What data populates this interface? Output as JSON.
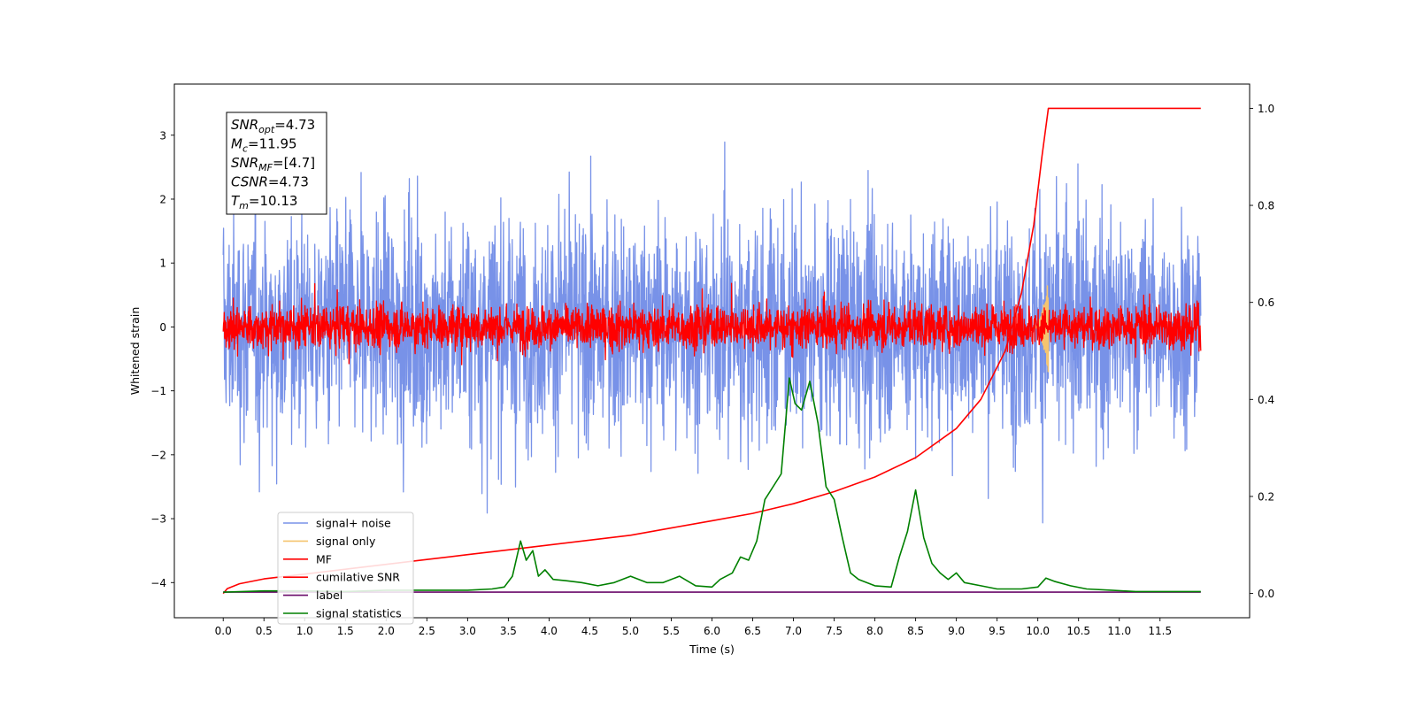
{
  "chart_data": {
    "type": "line",
    "xlabel": "Time (s)",
    "ylabel": "Whitened strain",
    "ylabel_right": "",
    "xlim": [
      -0.6,
      12.6
    ],
    "ylim": [
      -4.55,
      3.8
    ],
    "ylim_right": [
      -0.05,
      1.05
    ],
    "x_ticks": [
      0.0,
      0.5,
      1.0,
      1.5,
      2.0,
      2.5,
      3.0,
      3.5,
      4.0,
      4.5,
      5.0,
      5.5,
      6.0,
      6.5,
      7.0,
      7.5,
      8.0,
      8.5,
      9.0,
      9.5,
      10.0,
      10.5,
      11.0,
      11.5
    ],
    "x_tick_labels": [
      "0.0",
      "0.5",
      "1.0",
      "1.5",
      "2.0",
      "2.5",
      "3.0",
      "3.5",
      "4.0",
      "4.5",
      "5.0",
      "5.5",
      "6.0",
      "6.5",
      "7.0",
      "7.5",
      "8.0",
      "8.5",
      "9.0",
      "9.5",
      "10.0",
      "10.5",
      "11.0",
      "11.5"
    ],
    "y_ticks": [
      -4,
      -3,
      -2,
      -1,
      0,
      1,
      2,
      3
    ],
    "y_tick_labels": [
      "−4",
      "−3",
      "−2",
      "−1",
      "0",
      "1",
      "2",
      "3"
    ],
    "y_ticks_right": [
      0.0,
      0.2,
      0.4,
      0.6,
      0.8,
      1.0
    ],
    "y_tick_labels_right": [
      "0.0",
      "0.2",
      "0.4",
      "0.6",
      "0.8",
      "1.0"
    ],
    "grid": false,
    "legend_position": "lower-left",
    "annotation": [
      {
        "name": "SNR",
        "sub": "opt",
        "value": "=4.73"
      },
      {
        "name": "M",
        "sub": "c",
        "value": "=11.95"
      },
      {
        "name": "SNR",
        "sub": "MF",
        "value": "=[4.7]"
      },
      {
        "name": "CSNR",
        "sub": "",
        "value": "=4.73"
      },
      {
        "name": "T",
        "sub": "m",
        "value": "=10.13"
      }
    ],
    "series": [
      {
        "name": "signal+ noise",
        "color": "#7892e8",
        "axis": "left",
        "kind": "noise",
        "x_range": [
          0.0,
          12.0
        ],
        "std": 0.85
      },
      {
        "name": "signal only",
        "color": "#f5c46e",
        "axis": "left",
        "kind": "chirp",
        "x_range": [
          9.95,
          10.13
        ],
        "peak": 0.75
      },
      {
        "name": "MF",
        "color": "#ff0000",
        "axis": "left",
        "kind": "noise",
        "x_range": [
          0.0,
          12.0
        ],
        "std": 0.17
      },
      {
        "name": "cumilative SNR",
        "color": "#ff0000",
        "axis": "right",
        "x": [
          0.0,
          0.05,
          0.2,
          0.5,
          1.0,
          1.5,
          2.0,
          2.5,
          3.0,
          3.5,
          4.0,
          4.5,
          5.0,
          5.5,
          6.0,
          6.5,
          7.0,
          7.5,
          8.0,
          8.5,
          9.0,
          9.3,
          9.6,
          9.8,
          9.95,
          10.05,
          10.13,
          12.0
        ],
        "y": [
          0.0,
          0.01,
          0.02,
          0.03,
          0.04,
          0.05,
          0.06,
          0.07,
          0.08,
          0.09,
          0.1,
          0.11,
          0.12,
          0.135,
          0.15,
          0.165,
          0.185,
          0.21,
          0.24,
          0.28,
          0.34,
          0.4,
          0.5,
          0.62,
          0.76,
          0.9,
          1.0,
          1.0
        ]
      },
      {
        "name": "label",
        "color": "#6a0a6a",
        "axis": "left",
        "x": [
          0.0,
          12.0
        ],
        "y": [
          -4.15,
          -4.15
        ]
      },
      {
        "name": "signal statistics",
        "color": "#008000",
        "axis": "left",
        "x": [
          0.0,
          0.5,
          1.0,
          1.5,
          2.0,
          2.5,
          3.0,
          3.3,
          3.45,
          3.55,
          3.65,
          3.72,
          3.8,
          3.87,
          3.95,
          4.05,
          4.2,
          4.4,
          4.6,
          4.8,
          5.0,
          5.2,
          5.4,
          5.6,
          5.8,
          6.0,
          6.1,
          6.25,
          6.35,
          6.45,
          6.55,
          6.65,
          6.75,
          6.85,
          6.95,
          7.02,
          7.1,
          7.2,
          7.3,
          7.4,
          7.5,
          7.6,
          7.7,
          7.8,
          8.0,
          8.2,
          8.3,
          8.4,
          8.5,
          8.6,
          8.7,
          8.8,
          8.9,
          9.0,
          9.1,
          9.3,
          9.5,
          9.8,
          10.0,
          10.1,
          10.2,
          10.4,
          10.6,
          10.9,
          11.2,
          12.0
        ],
        "y": [
          -4.15,
          -4.13,
          -4.13,
          -4.14,
          -4.12,
          -4.12,
          -4.12,
          -4.1,
          -4.07,
          -3.9,
          -3.35,
          -3.65,
          -3.5,
          -3.9,
          -3.8,
          -3.95,
          -3.97,
          -4.0,
          -4.05,
          -4.0,
          -3.9,
          -4.0,
          -4.0,
          -3.9,
          -4.05,
          -4.07,
          -3.95,
          -3.85,
          -3.6,
          -3.65,
          -3.35,
          -2.7,
          -2.5,
          -2.3,
          -0.8,
          -1.2,
          -1.3,
          -0.85,
          -1.5,
          -2.5,
          -2.7,
          -3.3,
          -3.85,
          -3.95,
          -4.05,
          -4.07,
          -3.6,
          -3.2,
          -2.55,
          -3.3,
          -3.7,
          -3.85,
          -3.95,
          -3.85,
          -4.0,
          -4.05,
          -4.1,
          -4.1,
          -4.07,
          -3.93,
          -3.98,
          -4.05,
          -4.1,
          -4.12,
          -4.14,
          -4.14
        ]
      }
    ]
  }
}
